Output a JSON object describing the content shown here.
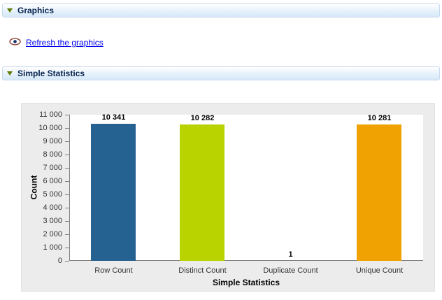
{
  "sections": {
    "graphics": {
      "title": "Graphics"
    },
    "simple_statistics": {
      "title": "Simple Statistics"
    }
  },
  "refresh_link": {
    "label": "Refresh the graphics"
  },
  "icons": {
    "collapse_arrow": "triangle-down",
    "refresh": "eye-icon"
  },
  "colors": {
    "header_gradient_end": "#d6e8f8",
    "panel_background": "#ececec",
    "link": "#0000ee"
  },
  "chart_data": {
    "type": "bar",
    "title": "",
    "categories": [
      "Row Count",
      "Distinct Count",
      "Duplicate Count",
      "Unique Count"
    ],
    "values": [
      10341,
      10282,
      1,
      10281
    ],
    "value_labels": [
      "10 341",
      "10 282",
      "1",
      "10 281"
    ],
    "bar_colors": [
      "#256191",
      "#B9D300",
      "#A0A0A0",
      "#F0A202"
    ],
    "xlabel": "Simple Statistics",
    "ylabel": "Count",
    "ylim": [
      0,
      11000
    ],
    "ytick_step": 1000,
    "ytick_labels": [
      "0",
      "1 000",
      "2 000",
      "3 000",
      "4 000",
      "5 000",
      "6 000",
      "7 000",
      "8 000",
      "9 000",
      "10 000",
      "11 000"
    ],
    "grid": false,
    "legend": "none"
  }
}
